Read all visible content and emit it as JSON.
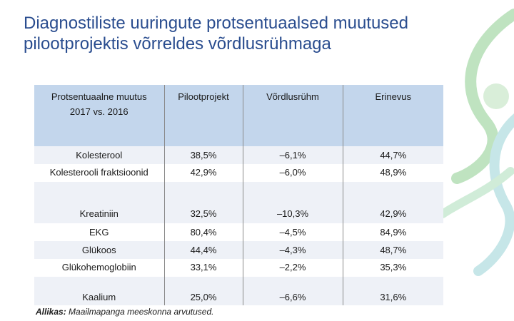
{
  "title": "Diagnostiliste uuringute protsentuaalsed muutused pilootprojektis võrreldes võrdlusrühmaga",
  "table": {
    "headers": {
      "c0_line1": "Protsentuaalne muutus",
      "c0_line2": "2017 vs. 2016",
      "c1": "Pilootprojekt",
      "c2": "Võrdlusrühm",
      "c3": "Erinevus"
    },
    "rows": [
      {
        "name": "Kolesterool",
        "pilot": "38,5%",
        "control": "–6,1%",
        "diff": "44,7%"
      },
      {
        "name": "Kolesterooli fraktsioonid",
        "pilot": "42,9%",
        "control": "–6,0%",
        "diff": "48,9%"
      },
      {
        "name": "Kreatiniin",
        "pilot": "32,5%",
        "control": "–10,3%",
        "diff": "42,9%"
      },
      {
        "name": "EKG",
        "pilot": "80,4%",
        "control": "–4,5%",
        "diff": "84,9%"
      },
      {
        "name": "Glükoos",
        "pilot": "44,4%",
        "control": "–4,3%",
        "diff": "48,7%"
      },
      {
        "name": "Glükohemoglobiin",
        "pilot": "33,1%",
        "control": "–2,2%",
        "diff": "35,3%"
      },
      {
        "name": "Kaalium",
        "pilot": "25,0%",
        "control": "–6,6%",
        "diff": "31,6%"
      }
    ]
  },
  "source": {
    "label": "Allikas:",
    "text": " Maailmapanga meeskonna arvutused."
  },
  "colors": {
    "title": "#2a4d8f",
    "header_bg": "#c3d6ec",
    "stripe": "#eef1f7"
  }
}
